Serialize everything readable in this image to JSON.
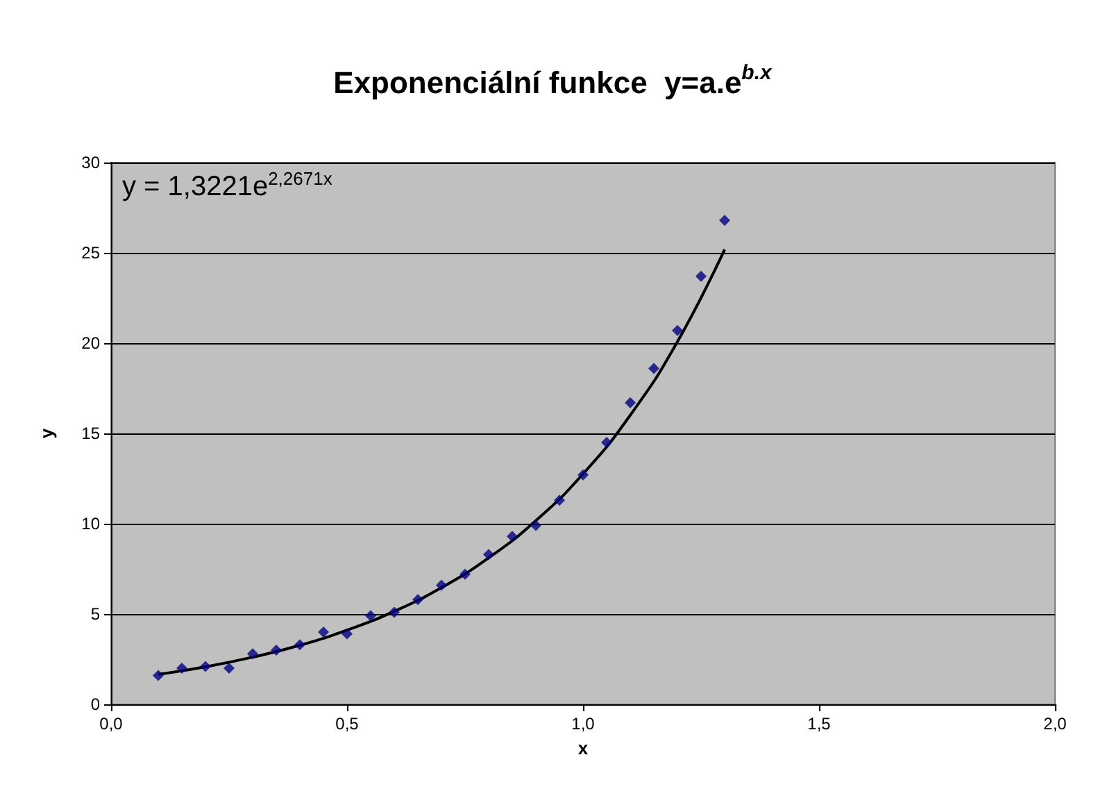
{
  "chart_data": {
    "type": "scatter",
    "title": "Exponenciální funkce  y=a.e$^{b.x}$",
    "xlabel": "x",
    "ylabel": "y",
    "annotations": [
      "y = 1,3221e$^{2,2671x}$"
    ],
    "series": [
      {
        "color": "#000080",
        "marker": "diamond",
        "x": [
          0.1,
          0.15,
          0.2,
          0.25,
          0.3,
          0.35,
          0.4,
          0.45,
          0.5,
          0.55,
          0.6,
          0.65,
          0.7,
          0.75,
          0.8,
          0.85,
          0.9,
          0.95,
          1.0,
          1.05,
          1.1,
          1.15,
          1.2,
          1.25,
          1.3
        ],
        "values": [
          1.6,
          2.0,
          2.1,
          2.0,
          2.8,
          3.0,
          3.3,
          4.0,
          3.9,
          4.9,
          5.1,
          5.8,
          6.6,
          7.2,
          8.3,
          9.3,
          9.9,
          11.3,
          12.7,
          14.5,
          16.7,
          18.6,
          20.7,
          23.7,
          26.8
        ]
      },
      {
        "type": "line",
        "color": "#000000",
        "marker": "none",
        "line_style": "solid",
        "x": [
          0.1,
          0.2,
          0.3,
          0.4,
          0.5,
          0.6,
          0.7,
          0.8,
          0.9,
          1.0,
          1.1,
          1.2,
          1.3
        ],
        "values": [
          1.66,
          2.08,
          2.61,
          3.27,
          4.11,
          5.15,
          6.46,
          8.11,
          10.17,
          12.76,
          16.01,
          20.08,
          25.19
        ]
      }
    ],
    "xlim": [
      0,
      2
    ],
    "xticks": [
      {
        "value": 0,
        "label": "0,0"
      },
      {
        "value": 0.5,
        "label": "0,5"
      },
      {
        "value": 1,
        "label": "1,0"
      },
      {
        "value": 1.5,
        "label": "1,5"
      },
      {
        "value": 2,
        "label": "2,0"
      }
    ],
    "ylim": [
      0,
      30
    ],
    "yticks": [
      0,
      5,
      10,
      15,
      20,
      25,
      30
    ],
    "grid": "y"
  }
}
